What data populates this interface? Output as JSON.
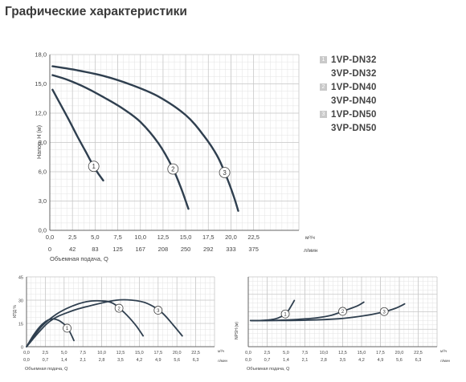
{
  "page_title": "Графические характеристики",
  "legend": [
    {
      "num": "1",
      "l1": "1VP-DN32",
      "l2": "3VP-DN32"
    },
    {
      "num": "2",
      "l1": "1VP-DN40",
      "l2": "3VP-DN40"
    },
    {
      "num": "3",
      "l1": "1VP-DN50",
      "l2": "3VP-DN50"
    }
  ],
  "colors": {
    "curve": "#2f3f4f",
    "grid": "#c8c8c8",
    "legend_box": "#c9c9c9"
  },
  "chart_data": [
    {
      "type": "line",
      "ylabel": "Напор, Н (м)",
      "xlabel": "Объемная подача, Q",
      "x_unit": "м³/ч",
      "x2_unit": "л/мин",
      "xlim": [
        0,
        27.5
      ],
      "ylim": [
        0,
        18
      ],
      "x_ticks": [
        0,
        2.5,
        5.0,
        7.5,
        10.0,
        12.5,
        15.0,
        17.5,
        20.0,
        22.5
      ],
      "x_tick_labels": [
        "0,0",
        "2,5",
        "5,0",
        "7,5",
        "10,0",
        "12,5",
        "15,0",
        "17,5",
        "20,0",
        "22,5"
      ],
      "x2_tick_labels": [
        "0",
        "42",
        "83",
        "125",
        "167",
        "208",
        "250",
        "292",
        "333",
        "375"
      ],
      "y_ticks": [
        0,
        3,
        6,
        9,
        12,
        15,
        18
      ],
      "y_tick_labels": [
        "0,0",
        "3,0",
        "6,0",
        "9,0",
        "12,0",
        "15,0",
        "18,0"
      ],
      "grid": true,
      "series": [
        {
          "label": "1",
          "x": [
            0.3,
            1.0,
            2.0,
            3.0,
            4.0,
            5.0,
            5.9
          ],
          "y": [
            14.4,
            13.2,
            11.5,
            9.7,
            8.0,
            6.3,
            5.1
          ],
          "marker_at": 4.85
        },
        {
          "label": "2",
          "x": [
            0.3,
            2.0,
            4.0,
            6.0,
            8.0,
            10.0,
            12.0,
            13.5,
            14.5,
            15.3
          ],
          "y": [
            15.9,
            15.4,
            14.6,
            13.6,
            12.5,
            11.1,
            8.9,
            6.5,
            4.3,
            2.2
          ],
          "marker_at": 13.6
        },
        {
          "label": "3",
          "x": [
            0.3,
            3.0,
            6.0,
            9.0,
            12.0,
            15.0,
            17.0,
            18.5,
            19.5,
            20.3,
            20.8
          ],
          "y": [
            16.8,
            16.4,
            15.8,
            14.9,
            13.7,
            11.8,
            9.7,
            7.6,
            5.5,
            3.5,
            2.0
          ],
          "marker_at": 19.3
        }
      ]
    },
    {
      "type": "line",
      "ylabel": "КПД %",
      "xlabel": "Объемная подача, Q",
      "x_unit": "м³/ч",
      "x2_unit": "л/мин",
      "xlim": [
        0,
        25
      ],
      "ylim": [
        0,
        45
      ],
      "x_ticks": [
        0,
        2.5,
        5.0,
        7.5,
        10.0,
        12.5,
        15.0,
        17.5,
        20.0,
        22.5
      ],
      "x_tick_labels": [
        "0,0",
        "2,5",
        "5,0",
        "7,5",
        "10,0",
        "12,5",
        "15,0",
        "17,5",
        "20,0",
        "22,5"
      ],
      "x2_tick_labels": [
        "0,0",
        "0,7",
        "1,4",
        "2,1",
        "2,8",
        "3,5",
        "4,2",
        "4,9",
        "5,6",
        "6,3"
      ],
      "y_ticks": [
        0,
        15,
        30,
        45
      ],
      "y_tick_labels": [
        "0",
        "15",
        "30",
        "45"
      ],
      "grid": true,
      "series": [
        {
          "label": "1",
          "x": [
            0,
            1,
            2,
            3,
            4,
            5,
            5.7,
            6.3
          ],
          "y": [
            0,
            8,
            14,
            17.5,
            17.5,
            14.5,
            10,
            4
          ],
          "marker_at": 5.4
        },
        {
          "label": "2",
          "x": [
            0,
            2,
            4,
            6,
            8,
            10,
            11.5,
            13,
            14.5,
            15.5
          ],
          "y": [
            0,
            13,
            21,
            26,
            29,
            29.5,
            28,
            22,
            14,
            7
          ],
          "marker_at": 12.3
        },
        {
          "label": "3",
          "x": [
            0,
            3,
            6,
            9,
            12,
            14,
            16,
            18,
            19.5,
            20.7
          ],
          "y": [
            0,
            16,
            23,
            27,
            30,
            30,
            28,
            22,
            14,
            7
          ],
          "marker_at": 17.5
        }
      ]
    },
    {
      "type": "line",
      "ylabel": "NPSH (м)",
      "xlabel": "Объемная подача, Q",
      "x_unit": "м³/ч",
      "x2_unit": "л/мин",
      "xlim": [
        0,
        25
      ],
      "ylim": [
        0,
        4
      ],
      "x_ticks": [
        0,
        2.5,
        5.0,
        7.5,
        10.0,
        12.5,
        15.0,
        17.5,
        20.0,
        22.5
      ],
      "x_tick_labels": [
        "0,0",
        "2,5",
        "5,0",
        "7,5",
        "10,0",
        "12,5",
        "15,0",
        "17,5",
        "20,0",
        "22,5"
      ],
      "x2_tick_labels": [
        "0,0",
        "0,7",
        "1,4",
        "2,1",
        "2,8",
        "3,5",
        "4,2",
        "4,9",
        "5,6",
        "6,3"
      ],
      "y_ticks": [
        0,
        1,
        2,
        3,
        4
      ],
      "y_tick_labels": [
        "",
        "",
        "",
        "",
        ""
      ],
      "grid": true,
      "series": [
        {
          "label": "1",
          "x": [
            0.3,
            1.5,
            3,
            4,
            5,
            5.5,
            6.1
          ],
          "y": [
            1.5,
            1.5,
            1.55,
            1.65,
            1.9,
            2.2,
            2.65
          ],
          "marker_at": 4.9
        },
        {
          "label": "2",
          "x": [
            0.3,
            3,
            6,
            9,
            11,
            13,
            14.5,
            15.3
          ],
          "y": [
            1.5,
            1.5,
            1.55,
            1.65,
            1.8,
            2.1,
            2.35,
            2.55
          ],
          "marker_at": 12.5
        },
        {
          "label": "3",
          "x": [
            0.3,
            4,
            8,
            12,
            15,
            17.5,
            19.5,
            20.7
          ],
          "y": [
            1.5,
            1.5,
            1.52,
            1.6,
            1.75,
            1.95,
            2.2,
            2.45
          ],
          "marker_at": 18.0
        }
      ]
    }
  ]
}
